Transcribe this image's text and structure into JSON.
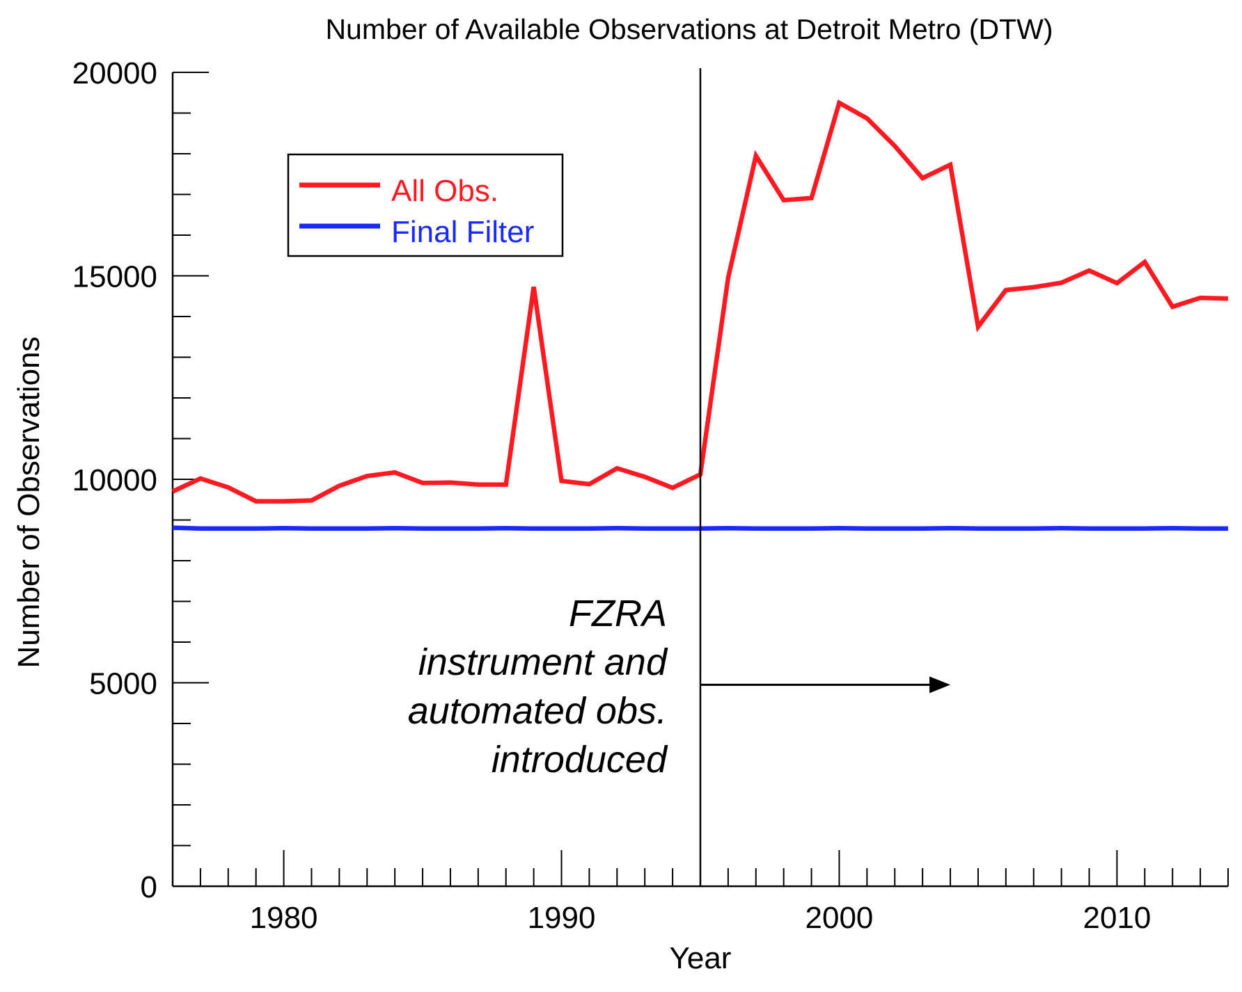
{
  "chart_data": {
    "type": "line",
    "title": "Number of Available Observations at Detroit Metro (DTW)",
    "xlabel": "Year",
    "ylabel": "Number of Observations",
    "xlim": [
      1976,
      2014
    ],
    "ylim": [
      0,
      20000
    ],
    "x_ticks": [
      1980,
      1990,
      2000,
      2010
    ],
    "y_ticks": [
      0,
      5000,
      10000,
      15000,
      20000
    ],
    "x_tick_labels": [
      "1980",
      "1990",
      "2000",
      "2010"
    ],
    "y_tick_labels": [
      "0",
      "5000",
      "10000",
      "15000",
      "20000"
    ],
    "x_minor_step": 1,
    "y_minor_step": 1000,
    "grid": false,
    "legend_position": "top-left",
    "x": [
      1976,
      1977,
      1978,
      1979,
      1980,
      1981,
      1982,
      1983,
      1984,
      1985,
      1986,
      1987,
      1988,
      1989,
      1990,
      1991,
      1992,
      1993,
      1994,
      1995,
      1996,
      1997,
      1998,
      1999,
      2000,
      2001,
      2002,
      2003,
      2004,
      2005,
      2006,
      2007,
      2008,
      2009,
      2010,
      2011,
      2012,
      2013,
      2014
    ],
    "series": [
      {
        "name": "All Obs.",
        "color": "#ff1a22",
        "values": [
          9700,
          10020,
          9800,
          9460,
          9460,
          9480,
          9840,
          10080,
          10170,
          9910,
          9920,
          9870,
          9870,
          14730,
          9960,
          9880,
          10270,
          10060,
          9790,
          10120,
          14950,
          17950,
          16860,
          16910,
          19250,
          18870,
          18190,
          17400,
          17730,
          13750,
          14650,
          14720,
          14830,
          15130,
          14820,
          15340,
          14240,
          14460,
          14440
        ]
      },
      {
        "name": "Final Filter",
        "color": "#1a2aff",
        "values": [
          8810,
          8790,
          8790,
          8790,
          8800,
          8790,
          8790,
          8790,
          8800,
          8790,
          8790,
          8790,
          8800,
          8790,
          8790,
          8790,
          8800,
          8790,
          8790,
          8790,
          8800,
          8790,
          8790,
          8790,
          8800,
          8790,
          8790,
          8790,
          8800,
          8790,
          8790,
          8790,
          8800,
          8790,
          8790,
          8790,
          8800,
          8790,
          8790
        ]
      }
    ],
    "marker_line": {
      "x": 1995,
      "color": "#000000"
    },
    "annotation": {
      "lines": [
        "FZRA",
        "instrument and",
        "automated obs.",
        "introduced"
      ],
      "arrow": {
        "x_start": 1995,
        "x_end": 2004,
        "y": 4950
      }
    }
  }
}
